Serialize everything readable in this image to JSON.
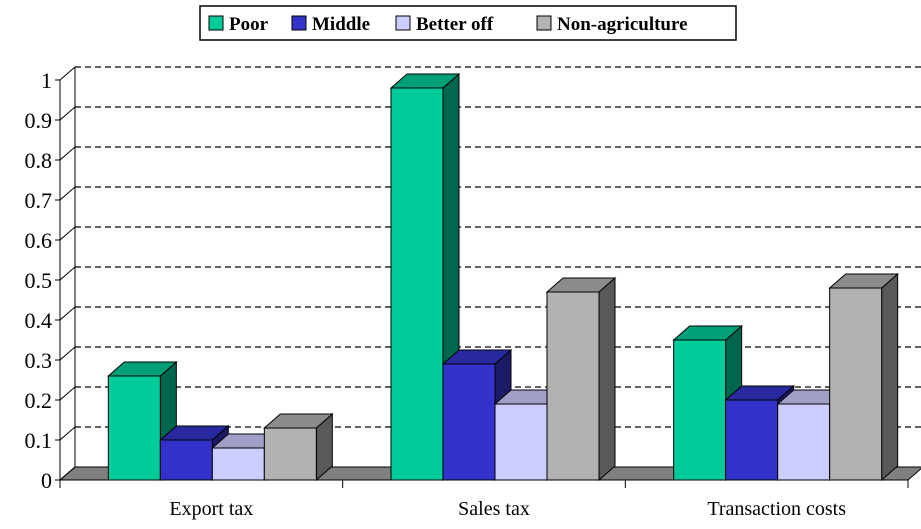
{
  "chart_data": {
    "type": "bar",
    "categories": [
      "Export tax",
      "Sales tax",
      "Transaction costs"
    ],
    "series": [
      {
        "name": "Poor",
        "values": [
          0.26,
          0.98,
          0.35
        ],
        "color": "#00CC99"
      },
      {
        "name": "Middle",
        "values": [
          0.1,
          0.29,
          0.2
        ],
        "color": "#3333CC"
      },
      {
        "name": "Better off",
        "values": [
          0.08,
          0.19,
          0.19
        ],
        "color": "#CCCCFF"
      },
      {
        "name": "Non-agriculture",
        "values": [
          0.13,
          0.47,
          0.48
        ],
        "color": "#B2B2B2"
      }
    ],
    "y_ticks": [
      "0",
      "0.1",
      "0.2",
      "0.3",
      "0.4",
      "0.5",
      "0.6",
      "0.7",
      "0.8",
      "0.9",
      "1"
    ],
    "ylim": [
      0,
      1
    ],
    "grid": true,
    "grid_style": "dashed",
    "legend_position": "top-center",
    "style": "3d"
  }
}
